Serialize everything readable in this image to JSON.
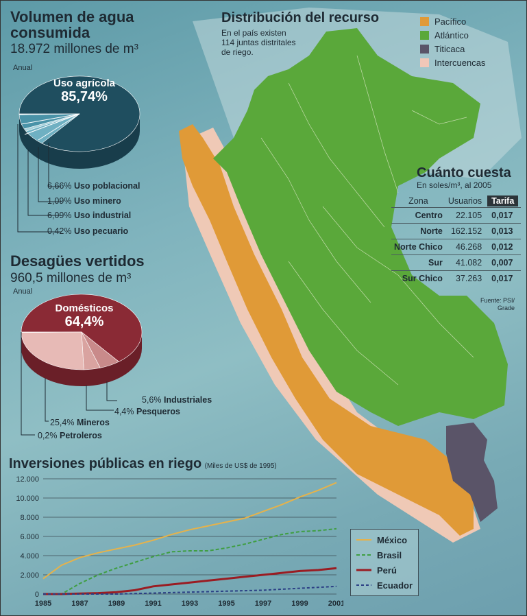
{
  "water_consumption": {
    "title_line1": "Volumen de agua",
    "title_line2": "consumida",
    "subtitle": "18.972 millones de m³",
    "period": "Anual",
    "main_label": "Uso agrícola",
    "main_value": "85,74%",
    "items": [
      {
        "pct": "6,66%",
        "label": "Uso poblacional"
      },
      {
        "pct": "1,09%",
        "label": "Uso minero"
      },
      {
        "pct": "6,09%",
        "label": "Uso industrial"
      },
      {
        "pct": "0,42%",
        "label": "Uso pecuario"
      }
    ]
  },
  "wastewater": {
    "title": "Desagües vertidos",
    "subtitle": "960,5 millones de m³",
    "period": "Anual",
    "main_label": "Domésticos",
    "main_value": "64,4%",
    "items": [
      {
        "pct": "5,6%",
        "label": "Industriales"
      },
      {
        "pct": "4,4%",
        "label": "Pesqueros"
      },
      {
        "pct": "25,4%",
        "label": "Mineros"
      },
      {
        "pct": "0,2%",
        "label": "Petroleros"
      }
    ]
  },
  "distribution": {
    "title": "Distribución del recurso",
    "note_line1": "En el país existen",
    "note_line2": "114 juntas distritales",
    "note_line3": "de riego.",
    "legend": [
      {
        "label": "Pacífico",
        "color": "#e09a37"
      },
      {
        "label": "Atlántico",
        "color": "#5aa83a"
      },
      {
        "label": "Titicaca",
        "color": "#5a5468"
      },
      {
        "label": "Intercuencas",
        "color": "#f0c7b8"
      }
    ]
  },
  "cost": {
    "title": "Cuánto cuesta",
    "subtitle": "En soles/m³, al 2005",
    "headers": {
      "zone": "Zona",
      "users": "Usuarios",
      "tariff": "Tarifa"
    },
    "rows": [
      {
        "zone": "Centro",
        "users": "22.105",
        "tariff": "0,017"
      },
      {
        "zone": "Norte",
        "users": "162.152",
        "tariff": "0,013"
      },
      {
        "zone": "Norte Chico",
        "users": "46.268",
        "tariff": "0,012"
      },
      {
        "zone": "Sur",
        "users": "41.082",
        "tariff": "0,007"
      },
      {
        "zone": "Sur Chico",
        "users": "37.263",
        "tariff": "0,017"
      }
    ],
    "source_line1": "Fuente: PSI/",
    "source_line2": "Grade"
  },
  "chart_data": [
    {
      "type": "pie",
      "title": "Volumen de agua consumida",
      "labels": [
        "Uso agrícola",
        "Uso poblacional",
        "Uso minero",
        "Uso industrial",
        "Uso pecuario"
      ],
      "values": [
        85.74,
        6.66,
        1.09,
        6.09,
        0.42
      ],
      "colors": [
        "#1f4e5f",
        "#6fb0c2",
        "#a8d2dc",
        "#4a93a8",
        "#d8eef2"
      ]
    },
    {
      "type": "pie",
      "title": "Desagües vertidos",
      "labels": [
        "Domésticos",
        "Industriales",
        "Pesqueros",
        "Mineros",
        "Petroleros"
      ],
      "values": [
        64.4,
        5.6,
        4.4,
        25.4,
        0.2
      ],
      "colors": [
        "#8a2a35",
        "#c98a8a",
        "#d9a3a0",
        "#e7bab6",
        "#f3d6d3"
      ]
    },
    {
      "type": "line",
      "title": "Inversiones públicas en riego",
      "subtitle": "(Miles de US$ de 1995)",
      "x": [
        1985,
        1986,
        1987,
        1988,
        1989,
        1990,
        1991,
        1992,
        1993,
        1994,
        1995,
        1996,
        1997,
        1998,
        1999,
        2000,
        2001
      ],
      "xticks": [
        "1985",
        "1987",
        "1989",
        "1991",
        "1993",
        "1995",
        "1997",
        "1999",
        "2001"
      ],
      "yticks": [
        "0",
        "2.000",
        "4.000",
        "6.000",
        "8.000",
        "10.000",
        "12.000"
      ],
      "ylim": [
        0,
        12000
      ],
      "series": [
        {
          "name": "México",
          "color": "#e6b24a",
          "dash": "",
          "values": [
            1600,
            3000,
            3800,
            4300,
            4700,
            5100,
            5600,
            6200,
            6700,
            7100,
            7500,
            7900,
            8600,
            9300,
            10100,
            10800,
            11600
          ]
        },
        {
          "name": "Brasil",
          "color": "#3f9e42",
          "dash": "5,3",
          "values": [
            0,
            0,
            1100,
            2000,
            2700,
            3300,
            3900,
            4400,
            4500,
            4500,
            4800,
            5200,
            5700,
            6200,
            6500,
            6600,
            6800
          ]
        },
        {
          "name": "Perú",
          "color": "#9a1c22",
          "dash": "",
          "values": [
            0,
            0,
            50,
            100,
            200,
            400,
            800,
            1000,
            1200,
            1400,
            1600,
            1800,
            2000,
            2200,
            2400,
            2500,
            2700
          ]
        },
        {
          "name": "Ecuador",
          "color": "#2b3f85",
          "dash": "4,3",
          "values": [
            0,
            0,
            0,
            0,
            0,
            50,
            100,
            150,
            200,
            250,
            300,
            350,
            400,
            500,
            600,
            700,
            800
          ]
        }
      ],
      "grid": true,
      "legend_position": "bottom-right"
    }
  ]
}
